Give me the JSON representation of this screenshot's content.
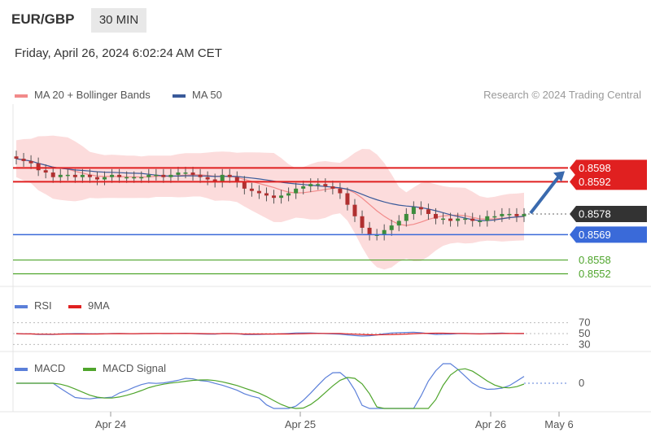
{
  "header": {
    "symbol": "EUR/GBP",
    "timeframe": "30 MIN"
  },
  "datetime": "Friday, April 26, 2024 6:02:24 AM CET",
  "credit": "Research © 2024 Trading Central",
  "legends": {
    "price": [
      {
        "label": "MA 20 + Bollinger Bands",
        "color": "#f28a8a"
      },
      {
        "label": "MA 50",
        "color": "#3a5a9a"
      }
    ],
    "rsi": [
      {
        "label": "RSI",
        "color": "#5b7fd9"
      },
      {
        "label": "9MA",
        "color": "#e02020"
      }
    ],
    "macd": [
      {
        "label": "MACD",
        "color": "#5b7fd9"
      },
      {
        "label": "MACD Signal",
        "color": "#4fa52c"
      }
    ]
  },
  "colors": {
    "resistance": "#e02020",
    "support_blue": "#3a6ad9",
    "support_green": "#4fa52c",
    "current": "#333333",
    "arrow": "#3a6aae"
  },
  "chart_data": {
    "type": "candlestick",
    "symbol": "EUR/GBP",
    "timeframe": "30 MIN",
    "x_ticks": [
      "Apr 24",
      "Apr 25",
      "Apr 26",
      "May 6"
    ],
    "price_levels": [
      {
        "value": 0.8598,
        "label": "0.8598",
        "kind": "resistance"
      },
      {
        "value": 0.8592,
        "label": "0.8592",
        "kind": "resistance"
      },
      {
        "value": 0.8578,
        "label": "0.8578",
        "kind": "current"
      },
      {
        "value": 0.8569,
        "label": "0.8569",
        "kind": "support"
      },
      {
        "value": 0.8558,
        "label": "0.8558",
        "kind": "support"
      },
      {
        "value": 0.8552,
        "label": "0.8552",
        "kind": "support"
      }
    ],
    "price_range": [
      0.8549,
      0.8625
    ],
    "close_series": [
      0.8602,
      0.8601,
      0.86,
      0.8597,
      0.8596,
      0.8594,
      0.8595,
      0.8595,
      0.8594,
      0.8595,
      0.8594,
      0.8593,
      0.8594,
      0.8595,
      0.8594,
      0.8594,
      0.8594,
      0.8594,
      0.8595,
      0.8595,
      0.8594,
      0.8595,
      0.8596,
      0.8596,
      0.8595,
      0.8594,
      0.8593,
      0.8592,
      0.8595,
      0.8594,
      0.8592,
      0.8589,
      0.8588,
      0.8587,
      0.8586,
      0.8585,
      0.8586,
      0.8587,
      0.8589,
      0.859,
      0.8591,
      0.8591,
      0.859,
      0.8589,
      0.8587,
      0.8582,
      0.8577,
      0.8572,
      0.8569,
      0.8569,
      0.8571,
      0.8573,
      0.8575,
      0.8578,
      0.8581,
      0.858,
      0.8578,
      0.8576,
      0.8576,
      0.8575,
      0.8576,
      0.8576,
      0.8575,
      0.8575,
      0.8577,
      0.8577,
      0.8578,
      0.8578,
      0.8577,
      0.8578
    ],
    "rsi": {
      "levels": [
        70,
        50,
        30
      ],
      "labels": [
        "70",
        "50",
        "30"
      ]
    },
    "macd": {
      "levels": [
        0
      ],
      "labels": [
        "0"
      ]
    }
  }
}
